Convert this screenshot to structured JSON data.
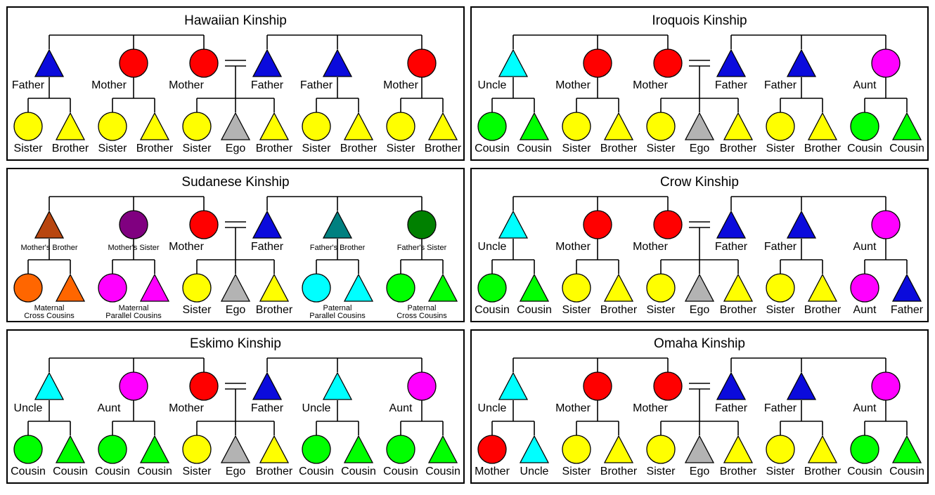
{
  "diagrams": [
    {
      "title": "Hawaiian Kinship",
      "parents": [
        {
          "shape": "triangle",
          "color": "#0b0bdc",
          "label": "Father"
        },
        {
          "shape": "circle",
          "color": "#ff0000",
          "label": "Mother"
        },
        {
          "shape": "circle",
          "color": "#ff0000",
          "label": "Mother"
        },
        {
          "shape": "triangle",
          "color": "#0b0bdc",
          "label": "Father"
        },
        {
          "shape": "triangle",
          "color": "#0b0bdc",
          "label": "Father"
        },
        {
          "shape": "circle",
          "color": "#ff0000",
          "label": "Mother"
        }
      ],
      "children": [
        {
          "shape": "circle",
          "color": "#ffff00",
          "label": "Sister"
        },
        {
          "shape": "triangle",
          "color": "#ffff00",
          "label": "Brother"
        },
        {
          "shape": "circle",
          "color": "#ffff00",
          "label": "Sister"
        },
        {
          "shape": "triangle",
          "color": "#ffff00",
          "label": "Brother"
        },
        {
          "shape": "circle",
          "color": "#ffff00",
          "label": "Sister"
        },
        {
          "shape": "triangle",
          "color": "#b3b3b3",
          "label": "Ego"
        },
        {
          "shape": "triangle",
          "color": "#ffff00",
          "label": "Brother"
        },
        {
          "shape": "circle",
          "color": "#ffff00",
          "label": "Sister"
        },
        {
          "shape": "triangle",
          "color": "#ffff00",
          "label": "Brother"
        },
        {
          "shape": "circle",
          "color": "#ffff00",
          "label": "Sister"
        },
        {
          "shape": "triangle",
          "color": "#ffff00",
          "label": "Brother"
        }
      ],
      "group_labels": []
    },
    {
      "title": "Iroquois Kinship",
      "parents": [
        {
          "shape": "triangle",
          "color": "#00ffff",
          "label": "Uncle"
        },
        {
          "shape": "circle",
          "color": "#ff0000",
          "label": "Mother"
        },
        {
          "shape": "circle",
          "color": "#ff0000",
          "label": "Mother"
        },
        {
          "shape": "triangle",
          "color": "#0b0bdc",
          "label": "Father"
        },
        {
          "shape": "triangle",
          "color": "#0b0bdc",
          "label": "Father"
        },
        {
          "shape": "circle",
          "color": "#ff00ff",
          "label": "Aunt"
        }
      ],
      "children": [
        {
          "shape": "circle",
          "color": "#00ff00",
          "label": "Cousin"
        },
        {
          "shape": "triangle",
          "color": "#00ff00",
          "label": "Cousin"
        },
        {
          "shape": "circle",
          "color": "#ffff00",
          "label": "Sister"
        },
        {
          "shape": "triangle",
          "color": "#ffff00",
          "label": "Brother"
        },
        {
          "shape": "circle",
          "color": "#ffff00",
          "label": "Sister"
        },
        {
          "shape": "triangle",
          "color": "#b3b3b3",
          "label": "Ego"
        },
        {
          "shape": "triangle",
          "color": "#ffff00",
          "label": "Brother"
        },
        {
          "shape": "circle",
          "color": "#ffff00",
          "label": "Sister"
        },
        {
          "shape": "triangle",
          "color": "#ffff00",
          "label": "Brother"
        },
        {
          "shape": "circle",
          "color": "#00ff00",
          "label": "Cousin"
        },
        {
          "shape": "triangle",
          "color": "#00ff00",
          "label": "Cousin"
        }
      ],
      "group_labels": []
    },
    {
      "title": "Sudanese Kinship",
      "parents": [
        {
          "shape": "triangle",
          "color": "#b8460f",
          "label": "Mother's Brother",
          "small": true
        },
        {
          "shape": "circle",
          "color": "#800080",
          "label": "Mother's Sister",
          "small": true
        },
        {
          "shape": "circle",
          "color": "#ff0000",
          "label": "Mother"
        },
        {
          "shape": "triangle",
          "color": "#0b0bdc",
          "label": "Father"
        },
        {
          "shape": "triangle",
          "color": "#008080",
          "label": "Father's Brother",
          "small": true
        },
        {
          "shape": "circle",
          "color": "#008000",
          "label": "Father's Sister",
          "small": true
        }
      ],
      "children": [
        {
          "shape": "circle",
          "color": "#ff6600",
          "label": ""
        },
        {
          "shape": "triangle",
          "color": "#ff6600",
          "label": ""
        },
        {
          "shape": "circle",
          "color": "#ff00ff",
          "label": ""
        },
        {
          "shape": "triangle",
          "color": "#ff00ff",
          "label": ""
        },
        {
          "shape": "circle",
          "color": "#ffff00",
          "label": "Sister"
        },
        {
          "shape": "triangle",
          "color": "#b3b3b3",
          "label": "Ego"
        },
        {
          "shape": "triangle",
          "color": "#ffff00",
          "label": "Brother"
        },
        {
          "shape": "circle",
          "color": "#00ffff",
          "label": ""
        },
        {
          "shape": "triangle",
          "color": "#00ffff",
          "label": ""
        },
        {
          "shape": "circle",
          "color": "#00ff00",
          "label": ""
        },
        {
          "shape": "triangle",
          "color": "#00ff00",
          "label": ""
        }
      ],
      "group_labels": [
        {
          "family": 0,
          "lines": [
            "Maternal",
            "Cross Cousins"
          ]
        },
        {
          "family": 1,
          "lines": [
            "Maternal",
            "Parallel Cousins"
          ]
        },
        {
          "family": 3,
          "lines": [
            "Paternal",
            "Parallel Cousins"
          ]
        },
        {
          "family": 4,
          "lines": [
            "Paternal",
            "Cross Cousins"
          ]
        }
      ]
    },
    {
      "title": "Crow Kinship",
      "parents": [
        {
          "shape": "triangle",
          "color": "#00ffff",
          "label": "Uncle"
        },
        {
          "shape": "circle",
          "color": "#ff0000",
          "label": "Mother"
        },
        {
          "shape": "circle",
          "color": "#ff0000",
          "label": "Mother"
        },
        {
          "shape": "triangle",
          "color": "#0b0bdc",
          "label": "Father"
        },
        {
          "shape": "triangle",
          "color": "#0b0bdc",
          "label": "Father"
        },
        {
          "shape": "circle",
          "color": "#ff00ff",
          "label": "Aunt"
        }
      ],
      "children": [
        {
          "shape": "circle",
          "color": "#00ff00",
          "label": "Cousin"
        },
        {
          "shape": "triangle",
          "color": "#00ff00",
          "label": "Cousin"
        },
        {
          "shape": "circle",
          "color": "#ffff00",
          "label": "Sister"
        },
        {
          "shape": "triangle",
          "color": "#ffff00",
          "label": "Brother"
        },
        {
          "shape": "circle",
          "color": "#ffff00",
          "label": "Sister"
        },
        {
          "shape": "triangle",
          "color": "#b3b3b3",
          "label": "Ego"
        },
        {
          "shape": "triangle",
          "color": "#ffff00",
          "label": "Brother"
        },
        {
          "shape": "circle",
          "color": "#ffff00",
          "label": "Sister"
        },
        {
          "shape": "triangle",
          "color": "#ffff00",
          "label": "Brother"
        },
        {
          "shape": "circle",
          "color": "#ff00ff",
          "label": "Aunt"
        },
        {
          "shape": "triangle",
          "color": "#0b0bdc",
          "label": "Father"
        }
      ],
      "group_labels": []
    },
    {
      "title": "Eskimo Kinship",
      "parents": [
        {
          "shape": "triangle",
          "color": "#00ffff",
          "label": "Uncle"
        },
        {
          "shape": "circle",
          "color": "#ff00ff",
          "label": "Aunt"
        },
        {
          "shape": "circle",
          "color": "#ff0000",
          "label": "Mother"
        },
        {
          "shape": "triangle",
          "color": "#0b0bdc",
          "label": "Father"
        },
        {
          "shape": "triangle",
          "color": "#00ffff",
          "label": "Uncle"
        },
        {
          "shape": "circle",
          "color": "#ff00ff",
          "label": "Aunt"
        }
      ],
      "children": [
        {
          "shape": "circle",
          "color": "#00ff00",
          "label": "Cousin"
        },
        {
          "shape": "triangle",
          "color": "#00ff00",
          "label": "Cousin"
        },
        {
          "shape": "circle",
          "color": "#00ff00",
          "label": "Cousin"
        },
        {
          "shape": "triangle",
          "color": "#00ff00",
          "label": "Cousin"
        },
        {
          "shape": "circle",
          "color": "#ffff00",
          "label": "Sister"
        },
        {
          "shape": "triangle",
          "color": "#b3b3b3",
          "label": "Ego"
        },
        {
          "shape": "triangle",
          "color": "#ffff00",
          "label": "Brother"
        },
        {
          "shape": "circle",
          "color": "#00ff00",
          "label": "Cousin"
        },
        {
          "shape": "triangle",
          "color": "#00ff00",
          "label": "Cousin"
        },
        {
          "shape": "circle",
          "color": "#00ff00",
          "label": "Cousin"
        },
        {
          "shape": "triangle",
          "color": "#00ff00",
          "label": "Cousin"
        }
      ],
      "group_labels": []
    },
    {
      "title": "Omaha Kinship",
      "parents": [
        {
          "shape": "triangle",
          "color": "#00ffff",
          "label": "Uncle"
        },
        {
          "shape": "circle",
          "color": "#ff0000",
          "label": "Mother"
        },
        {
          "shape": "circle",
          "color": "#ff0000",
          "label": "Mother"
        },
        {
          "shape": "triangle",
          "color": "#0b0bdc",
          "label": "Father"
        },
        {
          "shape": "triangle",
          "color": "#0b0bdc",
          "label": "Father"
        },
        {
          "shape": "circle",
          "color": "#ff00ff",
          "label": "Aunt"
        }
      ],
      "children": [
        {
          "shape": "circle",
          "color": "#ff0000",
          "label": "Mother"
        },
        {
          "shape": "triangle",
          "color": "#00ffff",
          "label": "Uncle"
        },
        {
          "shape": "circle",
          "color": "#ffff00",
          "label": "Sister"
        },
        {
          "shape": "triangle",
          "color": "#ffff00",
          "label": "Brother"
        },
        {
          "shape": "circle",
          "color": "#ffff00",
          "label": "Sister"
        },
        {
          "shape": "triangle",
          "color": "#b3b3b3",
          "label": "Ego"
        },
        {
          "shape": "triangle",
          "color": "#ffff00",
          "label": "Brother"
        },
        {
          "shape": "circle",
          "color": "#ffff00",
          "label": "Sister"
        },
        {
          "shape": "triangle",
          "color": "#ffff00",
          "label": "Brother"
        },
        {
          "shape": "circle",
          "color": "#00ff00",
          "label": "Cousin"
        },
        {
          "shape": "triangle",
          "color": "#00ff00",
          "label": "Cousin"
        }
      ],
      "group_labels": []
    }
  ]
}
